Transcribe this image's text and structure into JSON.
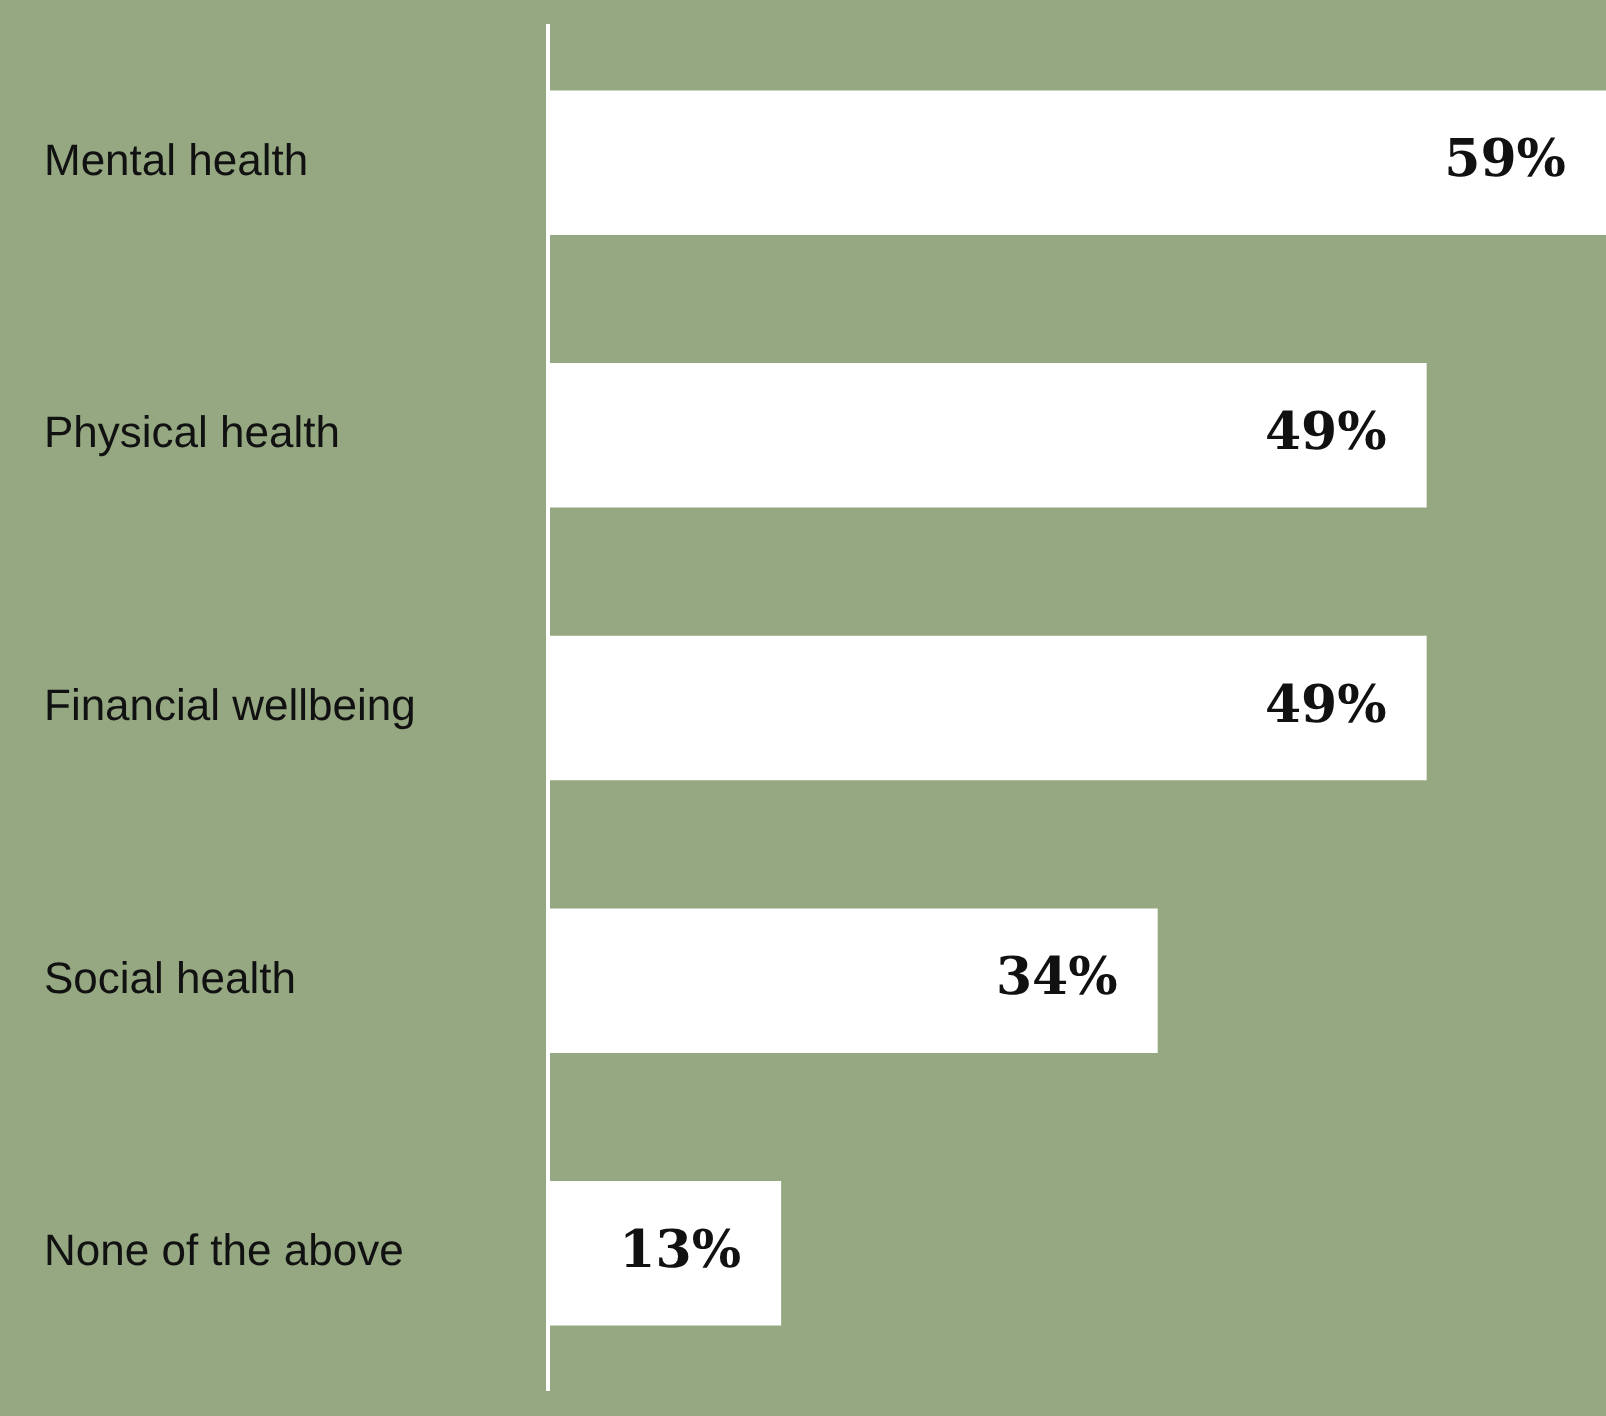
{
  "chart_data": {
    "type": "bar",
    "orientation": "horizontal",
    "categories": [
      "Mental health",
      "Physical health",
      "Financial wellbeing",
      "Social health",
      "None of the above"
    ],
    "values": [
      59,
      49,
      49,
      34,
      13
    ],
    "value_labels": [
      "59%",
      "49%",
      "49%",
      "34%",
      "13%"
    ],
    "color": "#ffffff",
    "grid": false,
    "legend": false
  }
}
